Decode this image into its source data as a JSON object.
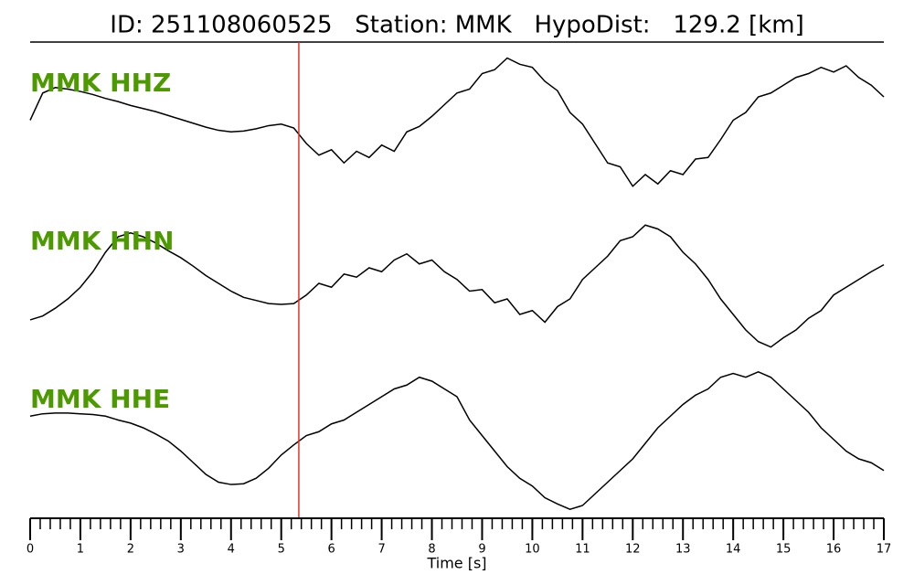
{
  "chart_data": {
    "type": "line",
    "title": "ID: 251108060525   Station: MMK   HypoDist:   129.2 [km]",
    "xlabel": "Time [s]",
    "xlim": [
      0,
      17
    ],
    "xticks": [
      0,
      1,
      2,
      3,
      4,
      5,
      6,
      7,
      8,
      9,
      10,
      11,
      12,
      13,
      14,
      15,
      16,
      17
    ],
    "minor_tick_interval": 0.2,
    "ylim": [
      -1,
      1
    ],
    "pick_time": 5.35,
    "pick_color": "#e8332a",
    "label_color": "#4c9a00",
    "x": [
      0,
      0.25,
      0.5,
      0.75,
      1,
      1.25,
      1.5,
      1.75,
      2,
      2.25,
      2.5,
      2.75,
      3,
      3.25,
      3.5,
      3.75,
      4,
      4.25,
      4.5,
      4.75,
      5,
      5.25,
      5.5,
      5.75,
      6,
      6.25,
      6.5,
      6.75,
      7,
      7.25,
      7.5,
      7.75,
      8,
      8.25,
      8.5,
      8.75,
      9,
      9.25,
      9.5,
      9.75,
      10,
      10.25,
      10.5,
      10.75,
      11,
      11.25,
      11.5,
      11.75,
      12,
      12.25,
      12.5,
      12.75,
      13,
      13.25,
      13.5,
      13.75,
      14,
      14.25,
      14.5,
      14.75,
      15,
      15.25,
      15.5,
      15.75,
      16,
      16.25,
      16.5,
      16.75,
      17
    ],
    "series": [
      {
        "name": "MMK HHZ",
        "color": "#000000",
        "values": [
          0.1,
          0.45,
          0.52,
          0.5,
          0.47,
          0.43,
          0.38,
          0.34,
          0.29,
          0.25,
          0.21,
          0.16,
          0.11,
          0.06,
          0.01,
          -0.03,
          -0.05,
          -0.04,
          -0.01,
          0.03,
          0.05,
          0.0,
          -0.2,
          -0.35,
          -0.28,
          -0.45,
          -0.3,
          -0.38,
          -0.22,
          -0.3,
          -0.05,
          0.02,
          0.15,
          0.3,
          0.45,
          0.5,
          0.7,
          0.75,
          0.9,
          0.82,
          0.78,
          0.6,
          0.48,
          0.2,
          0.05,
          -0.2,
          -0.45,
          -0.5,
          -0.75,
          -0.6,
          -0.72,
          -0.55,
          -0.6,
          -0.4,
          -0.38,
          -0.15,
          0.1,
          0.2,
          0.4,
          0.45,
          0.55,
          0.65,
          0.7,
          0.78,
          0.72,
          0.8,
          0.65,
          0.55,
          0.4
        ]
      },
      {
        "name": "MMK HHN",
        "color": "#000000",
        "values": [
          -0.47,
          -0.42,
          -0.32,
          -0.2,
          -0.05,
          0.15,
          0.4,
          0.6,
          0.65,
          0.6,
          0.52,
          0.42,
          0.33,
          0.22,
          0.1,
          0.0,
          -0.1,
          -0.18,
          -0.22,
          -0.26,
          -0.27,
          -0.26,
          -0.15,
          0.0,
          -0.05,
          0.12,
          0.08,
          0.2,
          0.15,
          0.3,
          0.38,
          0.25,
          0.3,
          0.15,
          0.05,
          -0.1,
          -0.08,
          -0.25,
          -0.2,
          -0.4,
          -0.35,
          -0.5,
          -0.3,
          -0.2,
          0.05,
          0.2,
          0.35,
          0.55,
          0.6,
          0.75,
          0.7,
          0.6,
          0.4,
          0.25,
          0.05,
          -0.2,
          -0.4,
          -0.6,
          -0.75,
          -0.82,
          -0.7,
          -0.6,
          -0.45,
          -0.35,
          -0.15,
          -0.05,
          0.05,
          0.15,
          0.24
        ]
      },
      {
        "name": "MMK HHE",
        "color": "#000000",
        "values": [
          0.35,
          0.38,
          0.39,
          0.39,
          0.38,
          0.37,
          0.35,
          0.3,
          0.26,
          0.2,
          0.12,
          0.03,
          -0.1,
          -0.25,
          -0.4,
          -0.5,
          -0.53,
          -0.52,
          -0.45,
          -0.32,
          -0.15,
          -0.02,
          0.1,
          0.15,
          0.25,
          0.3,
          0.4,
          0.5,
          0.6,
          0.7,
          0.75,
          0.85,
          0.8,
          0.7,
          0.6,
          0.3,
          0.1,
          -0.1,
          -0.3,
          -0.45,
          -0.55,
          -0.7,
          -0.78,
          -0.85,
          -0.8,
          -0.65,
          -0.5,
          -0.35,
          -0.2,
          0.0,
          0.2,
          0.35,
          0.5,
          0.62,
          0.7,
          0.85,
          0.9,
          0.85,
          0.92,
          0.85,
          0.7,
          0.55,
          0.4,
          0.2,
          0.05,
          -0.1,
          -0.2,
          -0.25,
          -0.35
        ]
      }
    ]
  }
}
